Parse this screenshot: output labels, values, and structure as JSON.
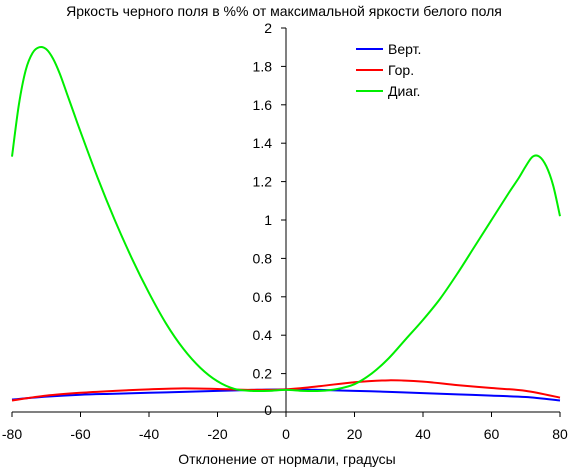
{
  "chart_data": {
    "type": "line",
    "title": "Яркость черного поля в %% от максимальной яркости белого поля",
    "xlabel": "Отклонение от нормали, градусы",
    "ylabel": "",
    "xlim": [
      -80,
      80
    ],
    "ylim": [
      0,
      2
    ],
    "xticks": [
      -80,
      -60,
      -40,
      -20,
      0,
      20,
      40,
      60,
      80
    ],
    "yticks": [
      0,
      0.2,
      0.4,
      0.6,
      0.8,
      1,
      1.2,
      1.4,
      1.6,
      1.8,
      2
    ],
    "grid": false,
    "legend_position": "top-center",
    "series": [
      {
        "name": "Верт.",
        "color": "#0000ff",
        "x": [
          -80,
          -70,
          -60,
          -50,
          -40,
          -30,
          -20,
          -10,
          0,
          10,
          20,
          30,
          40,
          50,
          60,
          70,
          80
        ],
        "y": [
          0.065,
          0.08,
          0.09,
          0.095,
          0.1,
          0.105,
          0.11,
          0.115,
          0.118,
          0.115,
          0.11,
          0.105,
          0.098,
          0.092,
          0.085,
          0.078,
          0.06
        ]
      },
      {
        "name": "Гор.",
        "color": "#ff0000",
        "x": [
          -80,
          -70,
          -60,
          -50,
          -40,
          -30,
          -20,
          -10,
          0,
          10,
          20,
          30,
          40,
          50,
          60,
          70,
          80
        ],
        "y": [
          0.06,
          0.085,
          0.1,
          0.11,
          0.118,
          0.123,
          0.12,
          0.115,
          0.118,
          0.135,
          0.155,
          0.165,
          0.158,
          0.14,
          0.125,
          0.11,
          0.075
        ]
      },
      {
        "name": "Диаг.",
        "color": "#00ee00",
        "x": [
          -80,
          -78,
          -76,
          -74,
          -72,
          -70,
          -68,
          -66,
          -64,
          -62,
          -60,
          -55,
          -50,
          -45,
          -40,
          -35,
          -30,
          -25,
          -20,
          -15,
          -10,
          -5,
          0,
          5,
          10,
          15,
          20,
          25,
          30,
          35,
          40,
          45,
          50,
          55,
          60,
          65,
          68,
          70,
          72,
          74,
          76,
          78,
          80
        ],
        "y": [
          1.33,
          1.6,
          1.78,
          1.87,
          1.9,
          1.89,
          1.84,
          1.76,
          1.66,
          1.56,
          1.46,
          1.22,
          1.0,
          0.8,
          0.62,
          0.46,
          0.33,
          0.23,
          0.16,
          0.12,
          0.11,
          0.11,
          0.115,
          0.11,
          0.11,
          0.12,
          0.145,
          0.2,
          0.28,
          0.38,
          0.48,
          0.59,
          0.72,
          0.86,
          1.0,
          1.14,
          1.22,
          1.28,
          1.33,
          1.33,
          1.28,
          1.18,
          1.02
        ]
      }
    ]
  }
}
